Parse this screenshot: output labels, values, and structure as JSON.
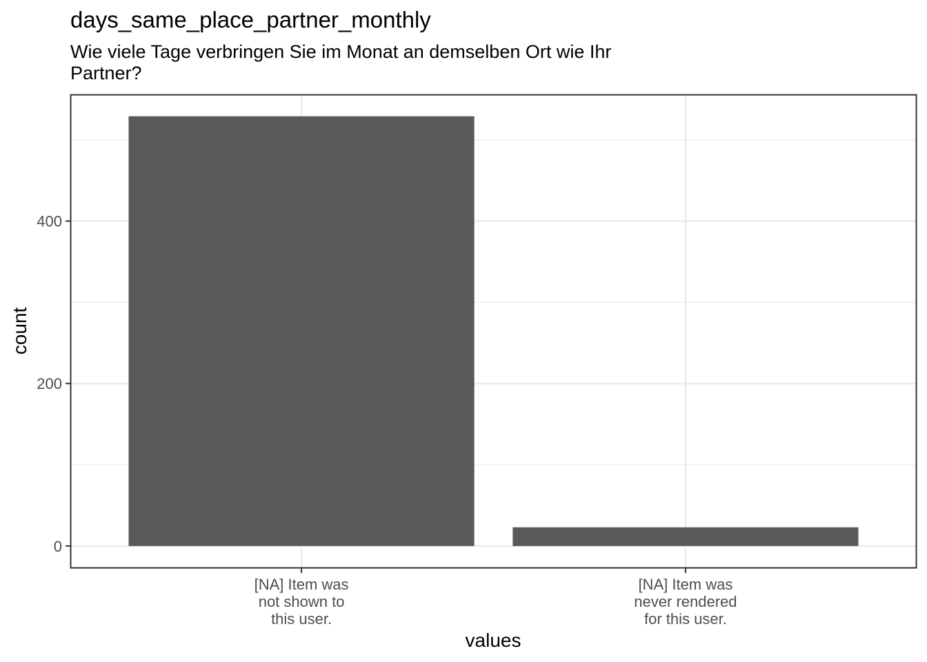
{
  "chart_data": {
    "type": "bar",
    "title": "days_same_place_partner_monthly",
    "subtitle_lines": [
      "Wie viele Tage verbringen Sie im Monat an demselben Ort wie Ihr",
      "Partner?"
    ],
    "xlabel": "values",
    "ylabel": "count",
    "categories": [
      [
        "[NA] Item was",
        "not shown to",
        "this user."
      ],
      [
        "[NA] Item was",
        "never rendered",
        "for this user."
      ]
    ],
    "values": [
      529,
      23
    ],
    "y_ticks": [
      0,
      200,
      400
    ],
    "ylim": [
      -26.5,
      555
    ],
    "bar_color": "#595959",
    "grid": true
  }
}
